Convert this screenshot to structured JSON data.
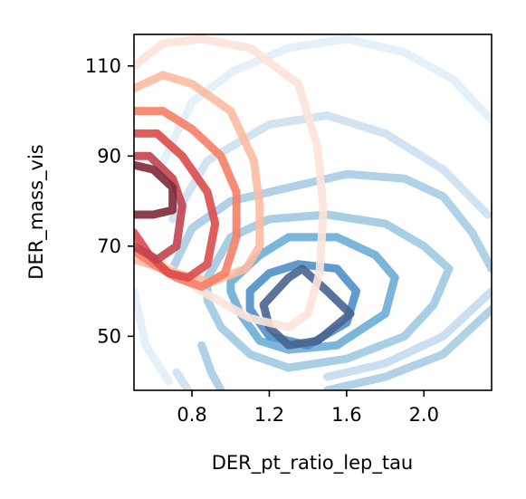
{
  "chart_data": {
    "type": "contour",
    "title": "",
    "xlabel": "DER_pt_ratio_lep_tau",
    "ylabel": "DER_mass_vis",
    "xlim": [
      0.5,
      2.35
    ],
    "ylim": [
      38,
      117
    ],
    "xticks": [
      0.8,
      1.2,
      1.6,
      2.0
    ],
    "yticks": [
      50,
      70,
      90,
      110
    ],
    "xtick_labels": [
      "0.8",
      "1.2",
      "1.6",
      "2.0"
    ],
    "ytick_labels": [
      "50",
      "70",
      "90",
      "110"
    ],
    "grid": false,
    "series": [
      {
        "colormap": "Blues",
        "levels": [
          {
            "color": "#e3eef8",
            "points": [
              [
                0.62,
                86
              ],
              [
                0.8,
                102
              ],
              [
                1.02,
                109
              ],
              [
                1.3,
                114
              ],
              [
                1.6,
                116
              ],
              [
                1.9,
                113
              ],
              [
                2.15,
                107
              ],
              [
                2.35,
                98
              ]
            ]
          },
          {
            "color": "#e3eef8",
            "points": [
              [
                0.5,
                60
              ],
              [
                0.56,
                48
              ],
              [
                0.68,
                40
              ]
            ]
          },
          {
            "color": "#cde0f1",
            "points": [
              [
                0.7,
                76
              ],
              [
                0.88,
                89
              ],
              [
                1.2,
                97
              ],
              [
                1.5,
                99
              ],
              [
                1.8,
                95
              ],
              [
                2.1,
                87
              ],
              [
                2.33,
                77
              ]
            ]
          },
          {
            "color": "#cde0f1",
            "points": [
              [
                0.72,
                42
              ],
              [
                0.78,
                38
              ]
            ]
          },
          {
            "color": "#c6dbef",
            "points": [
              [
                2.35,
                60
              ],
              [
                2.1,
                50
              ],
              [
                1.8,
                44
              ],
              [
                1.5,
                41
              ]
            ]
          },
          {
            "color": "#a9cce3",
            "points": [
              [
                0.7,
                65
              ],
              [
                0.8,
                74
              ],
              [
                1.0,
                80
              ],
              [
                1.3,
                83
              ],
              [
                1.6,
                86
              ],
              [
                1.9,
                85
              ],
              [
                2.1,
                81
              ],
              [
                2.25,
                73
              ],
              [
                2.35,
                65
              ]
            ]
          },
          {
            "color": "#a9cce3",
            "points": [
              [
                2.35,
                56
              ],
              [
                2.1,
                46
              ],
              [
                1.8,
                41
              ],
              [
                1.5,
                38
              ]
            ]
          },
          {
            "color": "#a9cce3",
            "points": [
              [
                0.85,
                48
              ],
              [
                0.9,
                42
              ],
              [
                0.95,
                38
              ]
            ]
          },
          {
            "color": "#9ecae1",
            "points": [
              [
                0.88,
                63
              ],
              [
                1.0,
                72
              ],
              [
                1.2,
                76
              ],
              [
                1.5,
                77
              ],
              [
                1.8,
                75
              ],
              [
                2.0,
                70
              ],
              [
                2.13,
                65
              ],
              [
                2.05,
                57
              ],
              [
                1.9,
                50
              ],
              [
                1.6,
                45
              ],
              [
                1.3,
                43
              ],
              [
                1.1,
                46
              ],
              [
                0.95,
                52
              ],
              [
                0.88,
                58
              ],
              [
                0.88,
                63
              ]
            ]
          },
          {
            "color": "#6aaed6",
            "points": [
              [
                1.0,
                62
              ],
              [
                1.15,
                68
              ],
              [
                1.3,
                72
              ],
              [
                1.55,
                72
              ],
              [
                1.75,
                68
              ],
              [
                1.85,
                63
              ],
              [
                1.8,
                55
              ],
              [
                1.55,
                48
              ],
              [
                1.3,
                47
              ],
              [
                1.15,
                49
              ],
              [
                1.05,
                55
              ],
              [
                1.0,
                60
              ],
              [
                1.0,
                62
              ]
            ]
          },
          {
            "color": "#4f8fc9",
            "points": [
              [
                1.1,
                60
              ],
              [
                1.2,
                64
              ],
              [
                1.35,
                66
              ],
              [
                1.55,
                65
              ],
              [
                1.65,
                60
              ],
              [
                1.6,
                53
              ],
              [
                1.4,
                48
              ],
              [
                1.2,
                50
              ],
              [
                1.1,
                56
              ],
              [
                1.1,
                60
              ]
            ]
          },
          {
            "color": "#4a648e",
            "points": [
              [
                1.17,
                57
              ],
              [
                1.3,
                63
              ],
              [
                1.37,
                65
              ],
              [
                1.5,
                60
              ],
              [
                1.62,
                55
              ],
              [
                1.45,
                49
              ],
              [
                1.3,
                48
              ],
              [
                1.2,
                52
              ],
              [
                1.17,
                57
              ]
            ]
          }
        ]
      },
      {
        "colormap": "Reds",
        "levels": [
          {
            "color": "#fde3d9",
            "points": [
              [
                0.5,
                110
              ],
              [
                0.65,
                115
              ],
              [
                0.85,
                116
              ],
              [
                1.1,
                114
              ],
              [
                1.35,
                106
              ],
              [
                1.45,
                92
              ],
              [
                1.48,
                78
              ],
              [
                1.46,
                64
              ],
              [
                1.4,
                55
              ],
              [
                1.3,
                52
              ],
              [
                1.1,
                54
              ],
              [
                0.85,
                60
              ],
              [
                0.65,
                66
              ],
              [
                0.5,
                68
              ]
            ]
          },
          {
            "color": "#fcbba1",
            "points": [
              [
                0.5,
                105
              ],
              [
                0.65,
                108
              ],
              [
                0.8,
                106
              ],
              [
                1.0,
                100
              ],
              [
                1.12,
                89
              ],
              [
                1.15,
                79
              ],
              [
                1.15,
                70
              ],
              [
                1.08,
                65
              ],
              [
                0.9,
                62
              ],
              [
                0.72,
                64
              ],
              [
                0.58,
                66
              ],
              [
                0.5,
                67
              ]
            ]
          },
          {
            "color": "#f67f66",
            "points": [
              [
                0.5,
                100
              ],
              [
                0.65,
                100
              ],
              [
                0.8,
                96
              ],
              [
                0.95,
                90
              ],
              [
                1.03,
                82
              ],
              [
                1.03,
                72
              ],
              [
                0.97,
                64
              ],
              [
                0.85,
                61
              ],
              [
                0.72,
                63
              ],
              [
                0.6,
                66
              ],
              [
                0.5,
                69
              ]
            ]
          },
          {
            "color": "#dc4b4b",
            "points": [
              [
                0.5,
                95
              ],
              [
                0.62,
                95
              ],
              [
                0.75,
                90
              ],
              [
                0.88,
                82
              ],
              [
                0.92,
                75
              ],
              [
                0.88,
                66
              ],
              [
                0.78,
                63
              ],
              [
                0.68,
                64
              ],
              [
                0.58,
                68
              ],
              [
                0.5,
                73
              ]
            ]
          },
          {
            "color": "#c2434f",
            "points": [
              [
                0.5,
                90
              ],
              [
                0.58,
                90
              ],
              [
                0.7,
                85
              ],
              [
                0.75,
                79
              ],
              [
                0.72,
                70
              ],
              [
                0.62,
                67
              ],
              [
                0.5,
                70
              ]
            ]
          },
          {
            "color": "#7e2a3a",
            "points": [
              [
                0.5,
                88
              ],
              [
                0.6,
                87
              ],
              [
                0.7,
                83
              ],
              [
                0.7,
                78
              ],
              [
                0.6,
                77
              ],
              [
                0.5,
                77
              ]
            ]
          }
        ]
      }
    ]
  }
}
